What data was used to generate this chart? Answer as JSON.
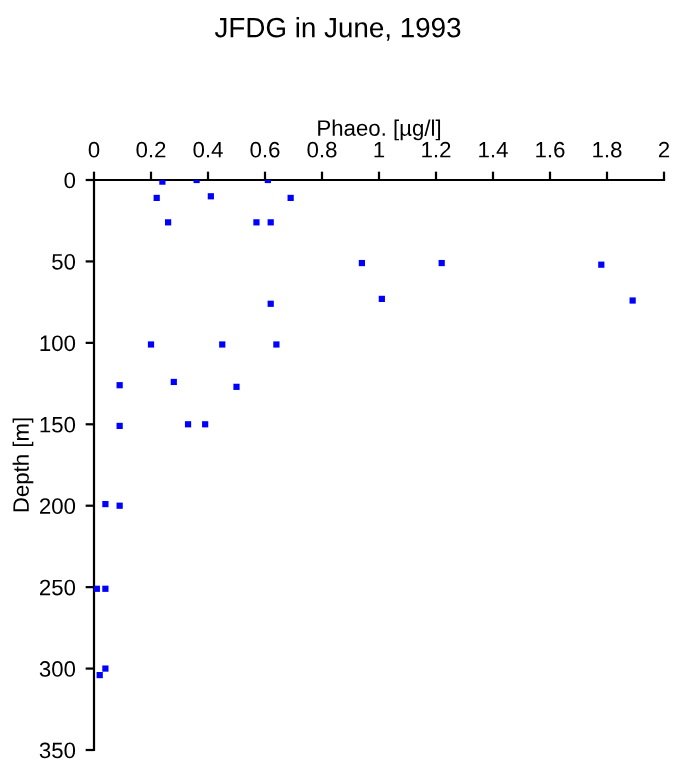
{
  "chart_data": {
    "type": "scatter",
    "title": "JFDG in June, 1993",
    "xlabel": "Phaeo. [µg/l]",
    "ylabel": "Depth [m]",
    "x": [
      0.24,
      0.36,
      0.61,
      0.22,
      0.41,
      0.69,
      0.26,
      0.57,
      0.62,
      0.94,
      1.22,
      1.78,
      1.01,
      1.89,
      0.62,
      0.2,
      0.45,
      0.64,
      0.09,
      0.28,
      0.5,
      0.09,
      0.33,
      0.39,
      0.04,
      0.09,
      0.01,
      0.04,
      0.02,
      0.04
    ],
    "values": [
      1,
      0,
      0,
      11,
      10,
      11,
      26,
      26,
      26,
      51,
      51,
      52,
      73,
      74,
      76,
      101,
      101,
      101,
      126,
      124,
      127,
      151,
      150,
      150,
      199,
      200,
      251,
      251,
      304,
      300
    ],
    "color": "#0000ff",
    "marker": "square",
    "xlim": [
      0,
      2
    ],
    "xticks": [
      0,
      0.2,
      0.4,
      0.6,
      0.8,
      1,
      1.2,
      1.4,
      1.6,
      1.8,
      2
    ],
    "ylim": [
      350,
      0
    ],
    "yticks": [
      0,
      50,
      100,
      150,
      200,
      250,
      300,
      350
    ],
    "grid": false
  }
}
